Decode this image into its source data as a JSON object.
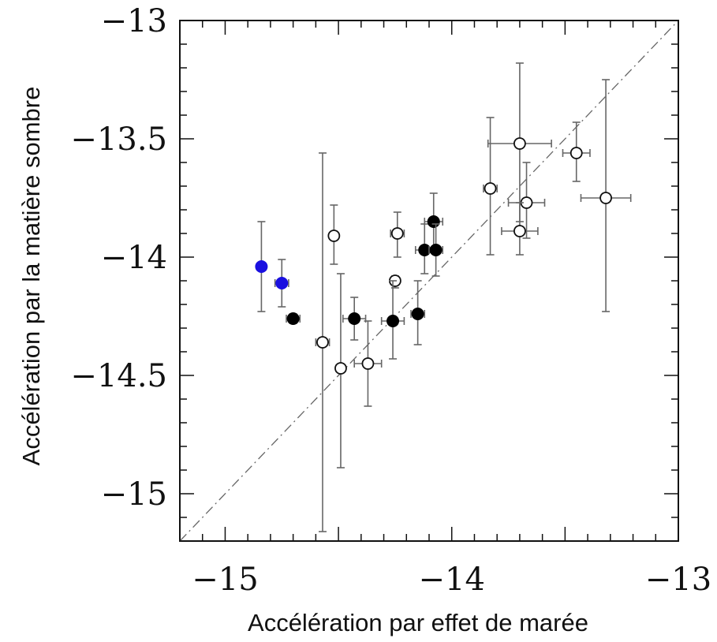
{
  "chart_data": {
    "type": "scatter",
    "title": "",
    "xlabel": "Accélération par effet de marée",
    "ylabel": "Accélération par la matière sombre",
    "xlim": [
      -15.2,
      -13
    ],
    "ylim": [
      -15.2,
      -13
    ],
    "x_ticks": [
      -15,
      -14,
      -13
    ],
    "y_ticks": [
      -15,
      -14.5,
      -14,
      -13.5,
      -13
    ],
    "x_tick_labels": [
      "−15",
      "−14",
      "−13"
    ],
    "y_tick_labels": [
      "−15",
      "−14.5",
      "−14",
      "−13.5",
      "−13"
    ],
    "reference_line": {
      "type": "identity",
      "style": "dash-dot",
      "color": "#666666"
    },
    "grid": false,
    "series": [
      {
        "marker": "open-circle",
        "color": "#111111",
        "points": [
          {
            "x": -14.52,
            "y": -13.91,
            "xerr": 0.0,
            "yerr": [
              0.12,
              0.13
            ]
          },
          {
            "x": -14.57,
            "y": -14.36,
            "xerr": 0.03,
            "yerr": [
              0.8,
              0.8
            ]
          },
          {
            "x": -14.49,
            "y": -14.47,
            "xerr": 0.02,
            "yerr": [
              0.42,
              0.4
            ]
          },
          {
            "x": -14.37,
            "y": -14.45,
            "xerr": 0.06,
            "yerr": [
              0.18,
              0.18
            ]
          },
          {
            "x": -14.25,
            "y": -14.1,
            "xerr": 0.0,
            "yerr": [
              0.03,
              0.02
            ]
          },
          {
            "x": -14.24,
            "y": -13.9,
            "xerr": 0.03,
            "yerr": [
              0.1,
              0.09
            ]
          },
          {
            "x": -13.83,
            "y": -13.71,
            "xerr": 0.03,
            "yerr": [
              0.28,
              0.3
            ]
          },
          {
            "x": -13.7,
            "y": -13.52,
            "xerr": 0.14,
            "yerr": [
              0.33,
              0.34
            ]
          },
          {
            "x": -13.67,
            "y": -13.77,
            "xerr": 0.08,
            "yerr": [
              0.15,
              0.17
            ]
          },
          {
            "x": -13.7,
            "y": -13.89,
            "xerr": 0.08,
            "yerr": [
              0.1,
              0.12
            ]
          },
          {
            "x": -13.45,
            "y": -13.56,
            "xerr": 0.06,
            "yerr": [
              0.12,
              0.13
            ]
          },
          {
            "x": -13.32,
            "y": -13.75,
            "xerr": 0.11,
            "yerr": [
              0.48,
              0.5
            ]
          }
        ]
      },
      {
        "marker": "filled-circle",
        "color": "#000000",
        "points": [
          {
            "x": -14.7,
            "y": -14.26,
            "xerr": 0.03,
            "yerr": [
              0.02,
              0.02
            ]
          },
          {
            "x": -14.43,
            "y": -14.26,
            "xerr": 0.05,
            "yerr": [
              0.09,
              0.09
            ]
          },
          {
            "x": -14.26,
            "y": -14.27,
            "xerr": 0.05,
            "yerr": [
              0.16,
              0.17
            ]
          },
          {
            "x": -14.15,
            "y": -14.24,
            "xerr": 0.03,
            "yerr": [
              0.13,
              0.14
            ]
          },
          {
            "x": -14.12,
            "y": -13.97,
            "xerr": 0.04,
            "yerr": [
              0.1,
              0.11
            ]
          },
          {
            "x": -14.08,
            "y": -13.85,
            "xerr": 0.04,
            "yerr": [
              0.11,
              0.12
            ]
          },
          {
            "x": -14.07,
            "y": -13.97,
            "xerr": 0.03,
            "yerr": [
              0.11,
              0.11
            ]
          }
        ]
      },
      {
        "marker": "filled-circle",
        "color": "#1a10e0",
        "points": [
          {
            "x": -14.84,
            "y": -14.04,
            "xerr": 0.02,
            "yerr": [
              0.19,
              0.19
            ]
          },
          {
            "x": -14.75,
            "y": -14.11,
            "xerr": 0.03,
            "yerr": [
              0.1,
              0.1
            ]
          }
        ]
      }
    ]
  }
}
